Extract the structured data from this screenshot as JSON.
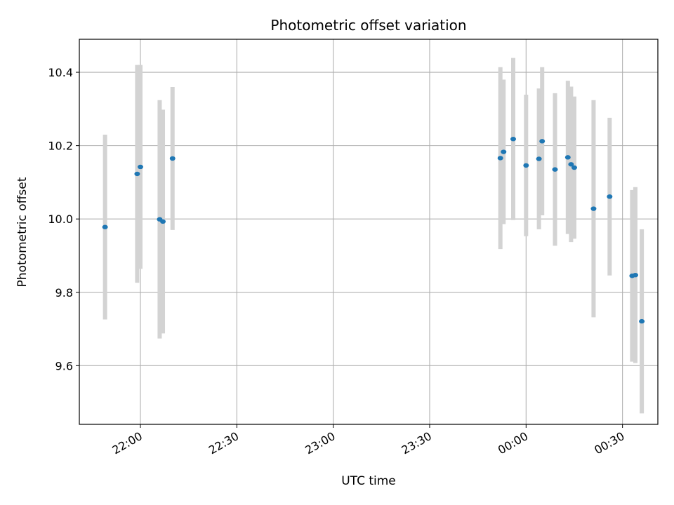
{
  "chart_data": {
    "type": "scatter",
    "title": "Photometric offset variation",
    "xlabel": "UTC time",
    "ylabel": "Photometric offset",
    "x_axis_kind": "time (UTC)",
    "xlim": [
      "21:41",
      "00:41"
    ],
    "ylim": [
      9.44,
      10.49
    ],
    "x_ticks": [
      "22:00",
      "22:30",
      "23:00",
      "23:30",
      "00:00",
      "00:30"
    ],
    "y_ticks": [
      9.6,
      9.8,
      10.0,
      10.2,
      10.4
    ],
    "grid": true,
    "legend": "none",
    "series": [
      {
        "point_color": "#1f77b4",
        "errorbar_color": "#d3d3d3",
        "points": [
          {
            "x": "21:49",
            "y": 9.978,
            "err": 0.252
          },
          {
            "x": "21:59",
            "y": 10.123,
            "err": 0.297
          },
          {
            "x": "22:00",
            "y": 10.142,
            "err": 0.278
          },
          {
            "x": "22:06",
            "y": 9.999,
            "err": 0.325
          },
          {
            "x": "22:07",
            "y": 9.993,
            "err": 0.305
          },
          {
            "x": "22:10",
            "y": 10.165,
            "err": 0.195
          },
          {
            "x": "23:52",
            "y": 10.166,
            "err": 0.248
          },
          {
            "x": "23:53",
            "y": 10.183,
            "err": 0.197
          },
          {
            "x": "23:56",
            "y": 10.218,
            "err": 0.221
          },
          {
            "x": "00:00",
            "y": 10.146,
            "err": 0.193
          },
          {
            "x": "00:04",
            "y": 10.164,
            "err": 0.192
          },
          {
            "x": "00:05",
            "y": 10.212,
            "err": 0.202
          },
          {
            "x": "00:09",
            "y": 10.135,
            "err": 0.208
          },
          {
            "x": "00:13",
            "y": 10.168,
            "err": 0.209
          },
          {
            "x": "00:14",
            "y": 10.149,
            "err": 0.212
          },
          {
            "x": "00:15",
            "y": 10.14,
            "err": 0.194
          },
          {
            "x": "00:21",
            "y": 10.028,
            "err": 0.296
          },
          {
            "x": "00:26",
            "y": 10.061,
            "err": 0.215
          },
          {
            "x": "00:33",
            "y": 9.845,
            "err": 0.234
          },
          {
            "x": "00:34",
            "y": 9.847,
            "err": 0.24
          },
          {
            "x": "00:36",
            "y": 9.721,
            "err": 0.251
          }
        ]
      }
    ]
  }
}
